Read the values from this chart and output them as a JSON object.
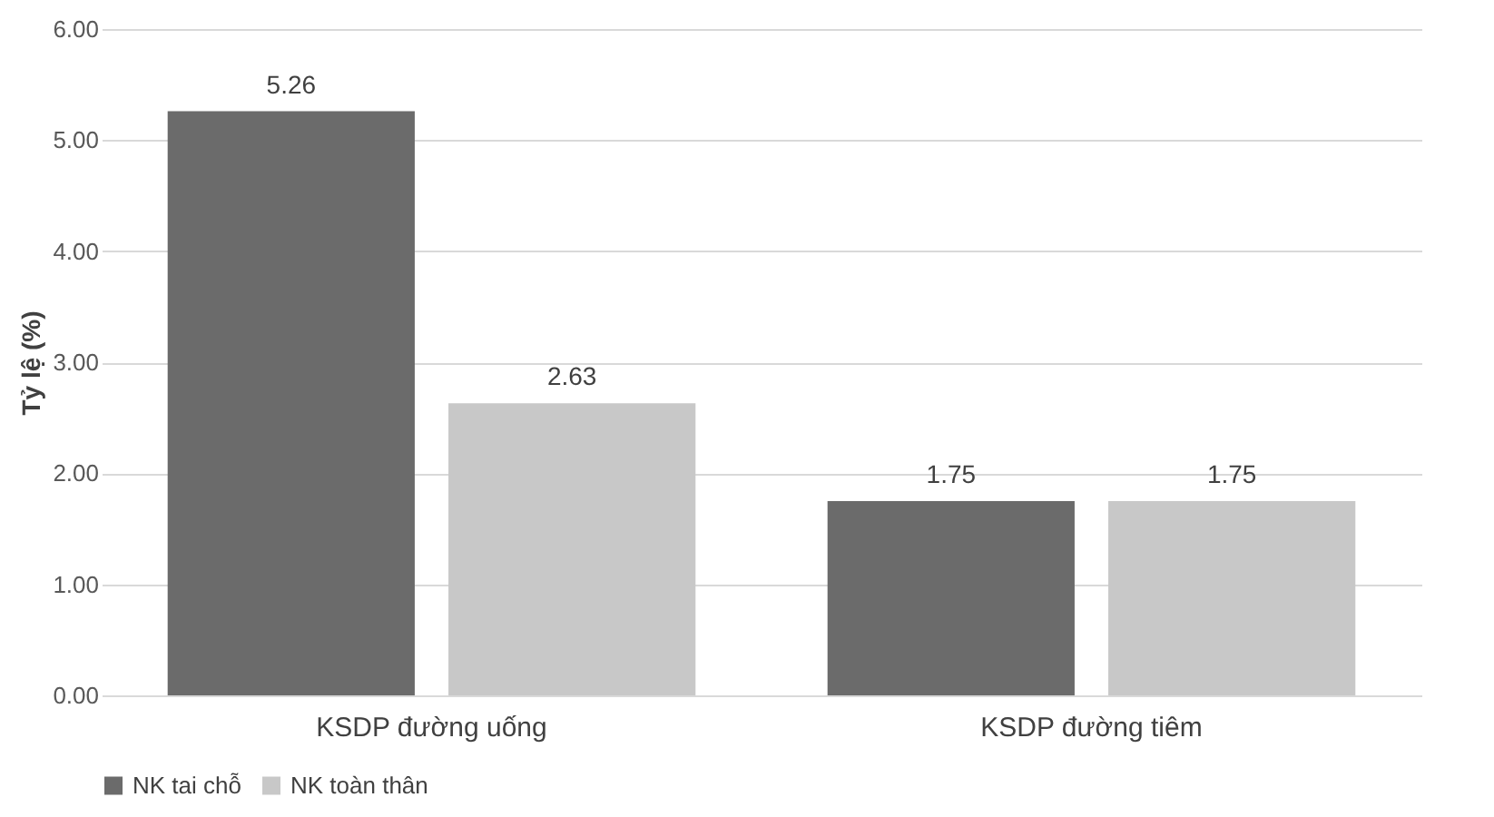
{
  "chart_data": {
    "type": "bar",
    "ylabel": "Tỷ lệ (%)",
    "categories": [
      "KSDP đường uống",
      "KSDP đường tiêm"
    ],
    "series": [
      {
        "name": "NK tai chỗ",
        "color": "#6b6b6b",
        "values": [
          5.26,
          1.75
        ]
      },
      {
        "name": "NK toàn thân",
        "color": "#c8c8c8",
        "values": [
          2.63,
          1.75
        ]
      }
    ],
    "ylim": [
      0,
      6
    ],
    "yticks": [
      {
        "value": 0,
        "label": "0.00"
      },
      {
        "value": 1,
        "label": "1.00"
      },
      {
        "value": 2,
        "label": "2.00"
      },
      {
        "value": 3,
        "label": "3.00"
      },
      {
        "value": 4,
        "label": "4.00"
      },
      {
        "value": 5,
        "label": "5.00"
      },
      {
        "value": 6,
        "label": "6.00"
      }
    ],
    "grid": "y",
    "legend": "bottom",
    "data_labels": true
  }
}
